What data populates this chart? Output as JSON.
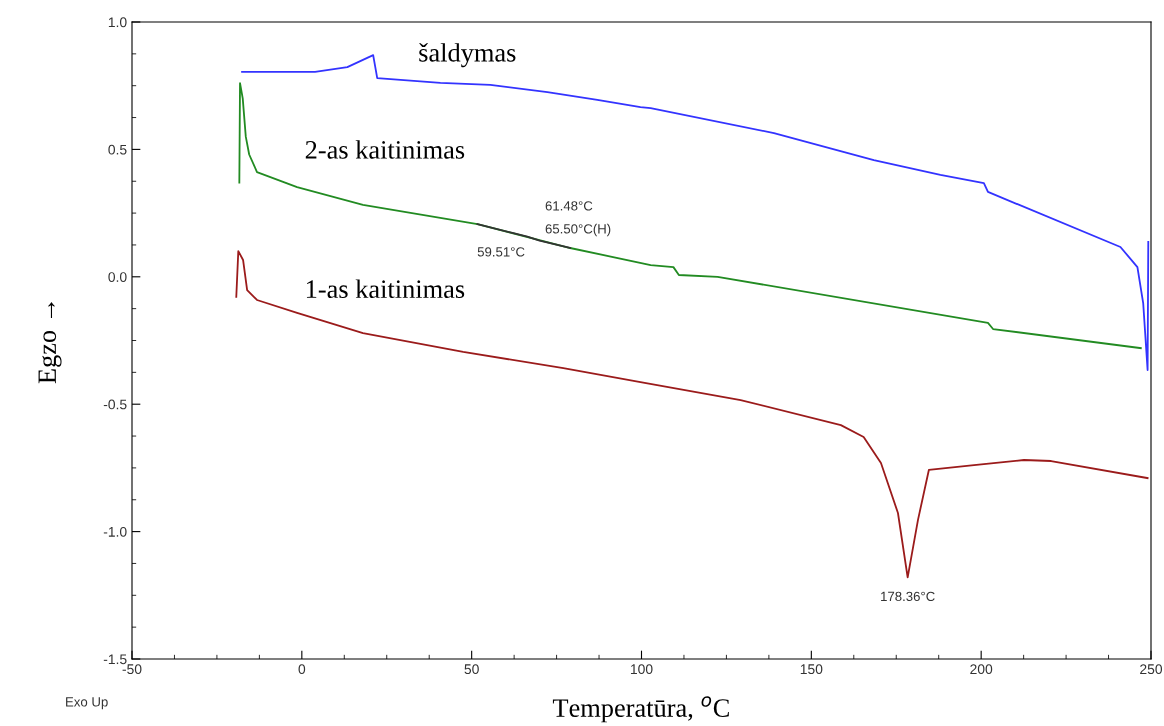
{
  "chart_data": {
    "type": "line",
    "xlabel": "Temperatūra, $^{o}$C",
    "ylabel": "Egzo →",
    "xlim": [
      -50,
      250
    ],
    "xticks": [
      -50,
      0,
      50,
      100,
      150,
      200,
      250
    ],
    "ylim": [
      -1.5,
      1.0
    ],
    "yticks": [
      {
        "value": -1.5,
        "label": "-1.5"
      },
      {
        "value": -1.0,
        "label": "-1.0"
      },
      {
        "value": -0.5,
        "label": "-0.5"
      },
      {
        "value": 0.0,
        "label": "0.0"
      },
      {
        "value": 0.5,
        "label": "0.5"
      },
      {
        "value": 1.0,
        "label": "1.0"
      }
    ],
    "grid": false,
    "legend": false,
    "marker": "none",
    "line_style": "solid",
    "series": [
      {
        "name": "šaldymas",
        "color": "#3333ff",
        "x": [
          249.2,
          249.0,
          247.7,
          246.0,
          241.0,
          202.0,
          200.8,
          188.0,
          168.4,
          139.0,
          102.7,
          99.7,
          87.0,
          72.3,
          55.5,
          40.8,
          22.2,
          21.0,
          13.4,
          3.9,
          -17.6
        ],
        "values": [
          0.137,
          -0.366,
          -0.103,
          0.038,
          0.117,
          0.333,
          0.368,
          0.4,
          0.458,
          0.564,
          0.662,
          0.666,
          0.694,
          0.725,
          0.753,
          0.761,
          0.78,
          0.87,
          0.823,
          0.804,
          0.804
        ]
      },
      {
        "name": "2-as kaitinimas",
        "color": "#228b22",
        "x": [
          -18.4,
          -18.2,
          -17.4,
          -16.5,
          -15.5,
          -13.2,
          -1.4,
          18.0,
          51.7,
          79.0,
          102.7,
          109.4,
          111.0,
          122.4,
          202.0,
          203.5,
          247.0
        ],
        "values": [
          0.37,
          0.76,
          0.7,
          0.55,
          0.48,
          0.411,
          0.352,
          0.282,
          0.207,
          0.113,
          0.046,
          0.038,
          0.007,
          0.0,
          -0.181,
          -0.205,
          -0.28
        ]
      },
      {
        "color": "#333333",
        "x": [
          51.7,
          62.0,
          66.4,
          70.0,
          79.0
        ],
        "values": [
          0.207,
          0.172,
          0.158,
          0.142,
          0.113
        ]
      },
      {
        "name": "1-as kaitinimas",
        "color": "#9b1b1b",
        "x": [
          -19.3,
          -18.7,
          -17.3,
          -16.1,
          -13.2,
          -1.4,
          18.0,
          47.5,
          77.0,
          99.7,
          129.2,
          158.7,
          165.4,
          170.5,
          175.5,
          178.36,
          181.4,
          184.6,
          197.9,
          212.6,
          220.6,
          249.0
        ],
        "values": [
          -0.079,
          0.101,
          0.066,
          -0.052,
          -0.091,
          -0.142,
          -0.221,
          -0.295,
          -0.358,
          -0.413,
          -0.484,
          -0.582,
          -0.629,
          -0.731,
          -0.927,
          -1.18,
          -0.954,
          -0.758,
          -0.739,
          -0.719,
          -0.723,
          -0.79
        ]
      }
    ],
    "annotations": [
      "61.48°C",
      "65.50°C(H)",
      "59.51°C",
      {
        "text": "178.36°C",
        "x": 178.36,
        "y": -1.18
      },
      "Exo Up"
    ]
  }
}
